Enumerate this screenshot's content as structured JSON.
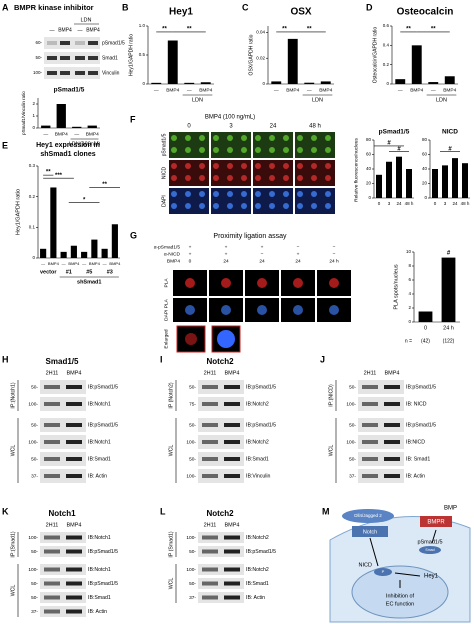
{
  "panels": {
    "A": {
      "letter": "A",
      "title": "BMPR kinase inhibitor",
      "treatment": "LDN",
      "lanes": [
        "—",
        "BMP4",
        "—",
        "BMP4"
      ],
      "blots": [
        {
          "label": "pSmad1/5",
          "mw": "60-"
        },
        {
          "label": "Smad1",
          "mw": "50-"
        },
        {
          "label": "Vinculin",
          "mw": "100-"
        }
      ],
      "chart": {
        "type": "bar",
        "title": "pSmad1/5",
        "ylabel": "pSmad1/Vinculin ratio",
        "categories": [
          "—",
          "BMP4",
          "—",
          "BMP4"
        ],
        "group_label": "LDN(100nM)",
        "values": [
          0.2,
          2.0,
          0.1,
          0.2
        ],
        "ylim": [
          0,
          2.5
        ],
        "yticks": [
          0,
          1,
          2
        ],
        "color": "#000000"
      }
    },
    "B": {
      "letter": "B",
      "chart": {
        "type": "bar",
        "title": "Hey1",
        "ylabel": "Hey1/GAPDH ratio",
        "categories": [
          "—",
          "BMP4",
          "—",
          "BMP4"
        ],
        "group_label": "LDN",
        "values": [
          0.02,
          0.75,
          0.02,
          0.03
        ],
        "ylim": [
          0,
          1
        ],
        "yticks": [
          0,
          0.5,
          {
            "value": 1,
            "label": "1.0"
          }
        ],
        "annotations": [
          "**",
          "**"
        ],
        "color": "#000000"
      }
    },
    "C": {
      "letter": "C",
      "chart": {
        "type": "bar",
        "title": "OSX",
        "ylabel": "OSX/GAPDH ratio",
        "categories": [
          "—",
          "BMP4",
          "—",
          "BMP4"
        ],
        "group_label": "LDN",
        "values": [
          0.002,
          0.035,
          0.001,
          0.002
        ],
        "ylim": [
          0,
          0.045
        ],
        "yticks": [
          0,
          0.02,
          0.04
        ],
        "annotations": [
          "**",
          "**"
        ],
        "color": "#000000"
      }
    },
    "D": {
      "letter": "D",
      "chart": {
        "type": "bar",
        "title": "Osteocalcin",
        "ylabel": "Osteocalcin/GAPDH ratio",
        "categories": [
          "—",
          "BMP4",
          "—",
          "BMP4"
        ],
        "group_label": "LDN",
        "values": [
          0.05,
          0.4,
          0.02,
          0.08
        ],
        "ylim": [
          0,
          0.6
        ],
        "yticks": [
          0,
          0.2,
          0.4,
          0.6
        ],
        "annotations": [
          "**",
          "**"
        ],
        "color": "#000000"
      }
    },
    "E": {
      "letter": "E",
      "chart": {
        "type": "bar",
        "title": [
          "Hey1 expression in",
          "shSmad1 clones"
        ],
        "ylabel": "Hey1/GAPDH ratio",
        "categories": [
          "—",
          "BMP4",
          "—",
          "BMP4",
          "—",
          "BMP4",
          "—",
          "BMP4"
        ],
        "groups": [
          "vector",
          "#1",
          "#5",
          "#3"
        ],
        "group_label": "shSmad1",
        "values": [
          0.03,
          0.23,
          0.02,
          0.04,
          0.02,
          0.06,
          0.03,
          0.11
        ],
        "ylim": [
          0,
          0.3
        ],
        "yticks": [
          0,
          0.1,
          0.2,
          0.3
        ],
        "annotations": [
          "**",
          "***",
          "*",
          "**"
        ],
        "color": "#000000"
      }
    },
    "F": {
      "letter": "F",
      "condition": "BMP4 (100 ng/mL)",
      "times": [
        "0",
        "3",
        "24",
        "48 h"
      ],
      "rows": [
        "pSmad1/5",
        "NICD",
        "DAPI"
      ],
      "ylabel": "Relative fluorescence/nucleus",
      "charts": [
        {
          "type": "bar",
          "title": "pSmad1/5",
          "categories": [
            "0",
            "3",
            "24",
            "48 h"
          ],
          "values": [
            32,
            50,
            57,
            40
          ],
          "ylim": [
            0,
            80
          ],
          "yticks": [
            0,
            20,
            40,
            60,
            80
          ],
          "annotations": [
            "#",
            "#"
          ],
          "color": "#000000"
        },
        {
          "type": "bar",
          "title": "NICD",
          "categories": [
            "0",
            "3",
            "24",
            "48 h"
          ],
          "values": [
            40,
            45,
            55,
            48
          ],
          "ylim": [
            0,
            80
          ],
          "yticks": [
            0,
            20,
            40,
            60,
            80
          ],
          "annotations": [
            "#"
          ],
          "color": "#000000"
        }
      ]
    },
    "G": {
      "letter": "G",
      "title": "Proximity ligation assay",
      "conditions": [
        {
          "label": "α-pSmad1/5",
          "values": [
            "+",
            "+",
            "+",
            "−",
            "−"
          ]
        },
        {
          "label": "α-NICD",
          "values": [
            "+",
            "+",
            "−",
            "+",
            "−"
          ]
        },
        {
          "label": "BMP4",
          "values": [
            "0",
            "24",
            "24",
            "24",
            "24 h"
          ]
        }
      ],
      "rows": [
        "PLA",
        "DAPI PLA",
        "Enlarged"
      ],
      "chart": {
        "type": "bar",
        "ylabel": "PLA spots/nucleus",
        "categories": [
          "0",
          "24 h"
        ],
        "values": [
          1.5,
          9.2
        ],
        "ylim": [
          0,
          10
        ],
        "yticks": [
          0,
          2,
          4,
          6,
          8,
          10
        ],
        "n_label": "n =",
        "n": [
          "(42)",
          "(122)"
        ],
        "annotations": [
          "#"
        ],
        "color": "#000000"
      }
    },
    "H": {
      "letter": "H",
      "title": "Smad1/5",
      "lanes": [
        "2H11",
        "BMP4"
      ],
      "groups": [
        {
          "label": "IP:(Notch1)",
          "rows": [
            {
              "ib": "IB:pSmad1/5",
              "mw": "50-"
            },
            {
              "ib": "IB:Notch1",
              "mw": "100-"
            }
          ]
        },
        {
          "label": "WCL",
          "rows": [
            {
              "ib": "IB:pSmad1/5",
              "mw": "50-"
            },
            {
              "ib": "IB:Notch1",
              "mw": "100-"
            },
            {
              "ib": "IB:Smad1",
              "mw": "50-"
            },
            {
              "ib": "IB: Actin",
              "mw": "37-"
            }
          ]
        }
      ]
    },
    "I": {
      "letter": "I",
      "title": "Notch2",
      "lanes": [
        "2H11",
        "BMP4"
      ],
      "groups": [
        {
          "label": "IP (Notch2)",
          "rows": [
            {
              "ib": "IB:pSmad1/5",
              "mw": "50-"
            },
            {
              "ib": "IB:Notch2",
              "mw": "75-"
            }
          ]
        },
        {
          "label": "WCL",
          "rows": [
            {
              "ib": "IB:pSmad1/5",
              "mw": "50-"
            },
            {
              "ib": "IB:Notch2",
              "mw": "100-"
            },
            {
              "ib": "IB:Smad1",
              "mw": "50-"
            },
            {
              "ib": "IB:Vinculin",
              "mw": "100-"
            }
          ]
        }
      ]
    },
    "J": {
      "letter": "J",
      "lanes": [
        "2H11",
        "BMP4"
      ],
      "groups": [
        {
          "label": "IP:(NICD)",
          "rows": [
            {
              "ib": "IB:pSmad1/5",
              "mw": "50-"
            },
            {
              "ib": "IB: NICD",
              "mw": "100-"
            }
          ]
        },
        {
          "label": "WCL",
          "rows": [
            {
              "ib": "IB:pSmad1/5",
              "mw": "50-"
            },
            {
              "ib": "IB:NICD",
              "mw": "100-"
            },
            {
              "ib": "IB: Smad1",
              "mw": "50-"
            },
            {
              "ib": "IB: Actin",
              "mw": "37-"
            }
          ]
        }
      ]
    },
    "K": {
      "letter": "K",
      "title": "Notch1",
      "lanes": [
        "2H11",
        "BMP4"
      ],
      "groups": [
        {
          "label": "IP:(Smad1)",
          "rows": [
            {
              "ib": "IB:Notch1",
              "mw": "100-"
            },
            {
              "ib": "IB:pSmad1/5",
              "mw": "50-"
            }
          ]
        },
        {
          "label": "WCL",
          "rows": [
            {
              "ib": "IB:Notch1",
              "mw": "100-"
            },
            {
              "ib": "IB:pSmad1/5",
              "mw": "50-"
            },
            {
              "ib": "IB:Smad1",
              "mw": "50-"
            },
            {
              "ib": "IB: Actin",
              "mw": "37-"
            }
          ]
        }
      ]
    },
    "L": {
      "letter": "L",
      "title": "Notch2",
      "lanes": [
        "2H11",
        "BMP4"
      ],
      "groups": [
        {
          "label": "IP (Smad1)",
          "rows": [
            {
              "ib": "IB:Notch2",
              "mw": "100-"
            },
            {
              "ib": "IB:pSmad1/5",
              "mw": "50-"
            }
          ]
        },
        {
          "label": "WCL",
          "rows": [
            {
              "ib": "IB:Notch2",
              "mw": "100-"
            },
            {
              "ib": "IB:Smad1",
              "mw": "50-"
            },
            {
              "ib": "IB: Actin",
              "mw": "37-"
            }
          ]
        }
      ]
    },
    "M": {
      "letter": "M",
      "bmp": "BMP",
      "bmpr": "BMPR",
      "ligand": "Dll4/Jagged 2",
      "notch": "Notch",
      "psmad": "pSmad1/5",
      "smad": "Smad",
      "nicd": "NICD",
      "p": "P",
      "hey1": "Hey1",
      "outcome": [
        "Inhibition of",
        "EC function"
      ]
    }
  }
}
